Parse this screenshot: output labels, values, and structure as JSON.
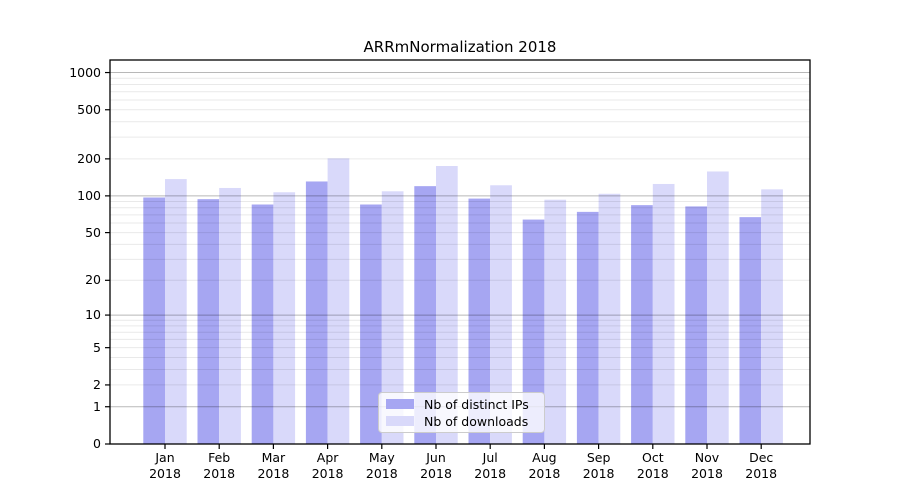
{
  "chart_data": {
    "type": "bar",
    "title": "ARRmNormalization 2018",
    "months": [
      "Jan",
      "Feb",
      "Mar",
      "Apr",
      "May",
      "Jun",
      "Jul",
      "Aug",
      "Sep",
      "Oct",
      "Nov",
      "Dec"
    ],
    "year_label": "2018",
    "categories": [
      "Jan 2018",
      "Feb 2018",
      "Mar 2018",
      "Apr 2018",
      "May 2018",
      "Jun 2018",
      "Jul 2018",
      "Aug 2018",
      "Sep 2018",
      "Oct 2018",
      "Nov 2018",
      "Dec 2018"
    ],
    "series": [
      {
        "name": "Nb of distinct IPs",
        "color": "#a6a6f2",
        "values": [
          97,
          94,
          85,
          131,
          85,
          120,
          95,
          64,
          74,
          84,
          82,
          67
        ]
      },
      {
        "name": "Nb of downloads",
        "color": "#d9d9fa",
        "values": [
          137,
          116,
          107,
          202,
          109,
          175,
          122,
          93,
          104,
          125,
          158,
          113
        ]
      }
    ],
    "y_ticks": [
      0,
      1,
      2,
      5,
      10,
      20,
      50,
      100,
      200,
      500,
      1000
    ],
    "y_scale": "log1p",
    "ylim": [
      0,
      1200
    ],
    "xlabel": "",
    "ylabel": "",
    "grid": true,
    "legend_position": "lower center",
    "colors": {
      "axis": "#000000",
      "major_grid": "#b4b4b4",
      "minor_grid": "#e8e8e8",
      "background": "#ffffff",
      "text": "#000000"
    }
  }
}
